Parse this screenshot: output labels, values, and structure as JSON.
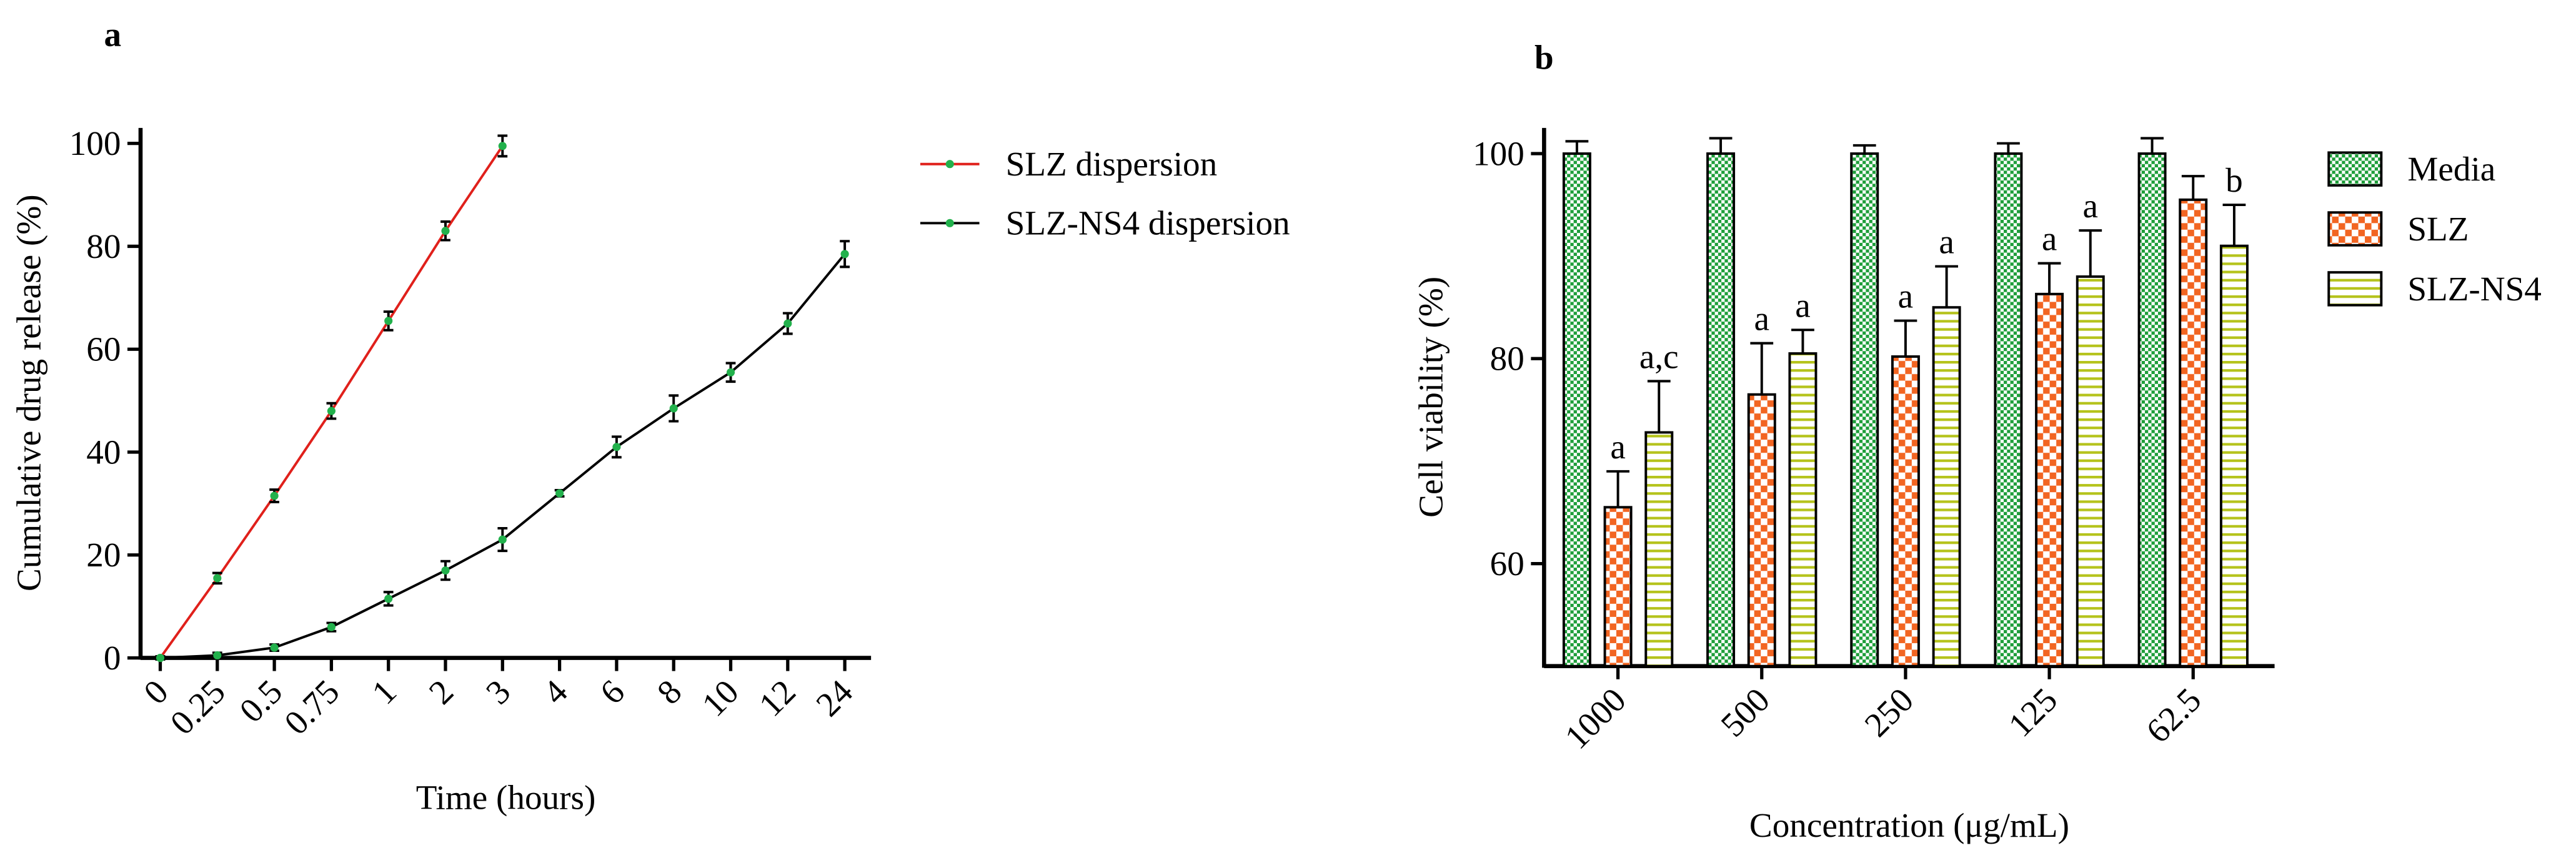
{
  "chart_data": [
    {
      "type": "line",
      "panel_label": "a",
      "xlabel": "Time (hours)",
      "ylabel": "Cumulative drug release (%)",
      "categories": [
        "0",
        "0.25",
        "0.5",
        "0.75",
        "1",
        "2",
        "3",
        "4",
        "6",
        "8",
        "10",
        "12",
        "24"
      ],
      "ylim": [
        0,
        103
      ],
      "yticks": [
        0,
        20,
        40,
        60,
        80,
        100
      ],
      "legend": "right",
      "marker_color": "#22b14c",
      "series": [
        {
          "name": "SLZ dispersion",
          "color": "#e0201b",
          "values": [
            0,
            15.5,
            31.5,
            48,
            65.5,
            83,
            99.5,
            null,
            null,
            null,
            null,
            null,
            null
          ],
          "errors": [
            0.3,
            1,
            1.2,
            1.5,
            1.8,
            1.8,
            2,
            null,
            null,
            null,
            null,
            null,
            null
          ]
        },
        {
          "name": "SLZ-NS4 dispersion",
          "color": "#000000",
          "values": [
            0,
            0.5,
            2,
            6,
            11.5,
            17,
            23,
            32,
            41,
            48.5,
            55.5,
            65,
            78.5
          ],
          "errors": [
            0.3,
            0.5,
            0.6,
            0.8,
            1.3,
            1.8,
            2.2,
            0.6,
            2,
            2.5,
            1.8,
            2,
            2.5
          ]
        }
      ]
    },
    {
      "type": "bar",
      "panel_label": "b",
      "xlabel": "Concentration (μg/mL)",
      "ylabel": "Cell viability (%)",
      "categories": [
        "1000",
        "500",
        "250",
        "125",
        "62.5"
      ],
      "ylim": [
        50,
        102.5
      ],
      "yticks": [
        60,
        80,
        100
      ],
      "legend": "right",
      "series": [
        {
          "name": "Media",
          "color": "#1e9e3a",
          "values": [
            100,
            100,
            100,
            100,
            100
          ],
          "errors": [
            1.2,
            1.5,
            0.8,
            1,
            1.5
          ],
          "annotations": [
            null,
            null,
            null,
            null,
            null
          ]
        },
        {
          "name": "SLZ",
          "color": "#f26522",
          "values": [
            65.5,
            76.5,
            80.2,
            86.3,
            95.5
          ],
          "errors": [
            3.5,
            5,
            3.5,
            3,
            2.3
          ],
          "annotations": [
            "a",
            "a",
            "a",
            "a",
            null
          ]
        },
        {
          "name": "SLZ-NS4",
          "color": "#b5c31c",
          "values": [
            72.8,
            80.5,
            85,
            88,
            91
          ],
          "errors": [
            5,
            2.3,
            4,
            4.5,
            4
          ],
          "annotations": [
            "a,c",
            "a",
            "a",
            "a",
            "b"
          ]
        }
      ]
    }
  ]
}
